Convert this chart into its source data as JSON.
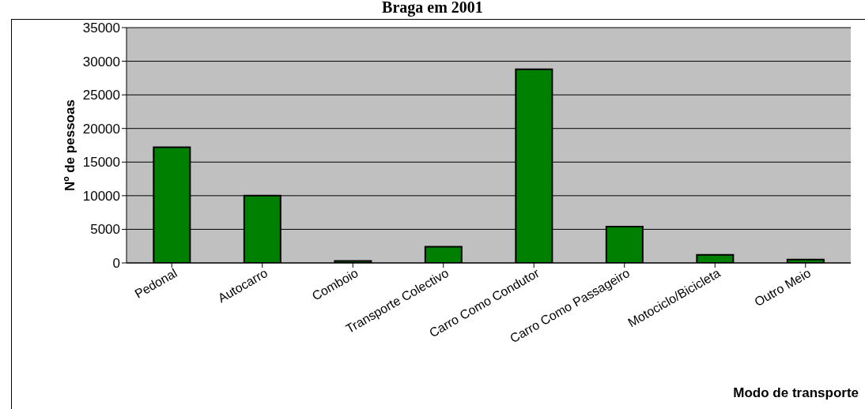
{
  "chart_data": {
    "type": "bar",
    "title": "Braga em 2001",
    "xlabel": "Modo de transporte",
    "ylabel": "Nº de pessoas",
    "categories": [
      "Pedonal",
      "Autocarro",
      "Comboio",
      "Transporte Colectivo",
      "Carro Como Condutor",
      "Carro Como Passageiro",
      "Motociclo/Bicicleta",
      "Outro Meio"
    ],
    "values": [
      17200,
      10000,
      300,
      2400,
      28800,
      5400,
      1200,
      500
    ],
    "color": "#008000",
    "ylim": [
      0,
      35000
    ],
    "yticks": [
      0,
      5000,
      10000,
      15000,
      20000,
      25000,
      30000,
      35000
    ],
    "grid": "y"
  }
}
